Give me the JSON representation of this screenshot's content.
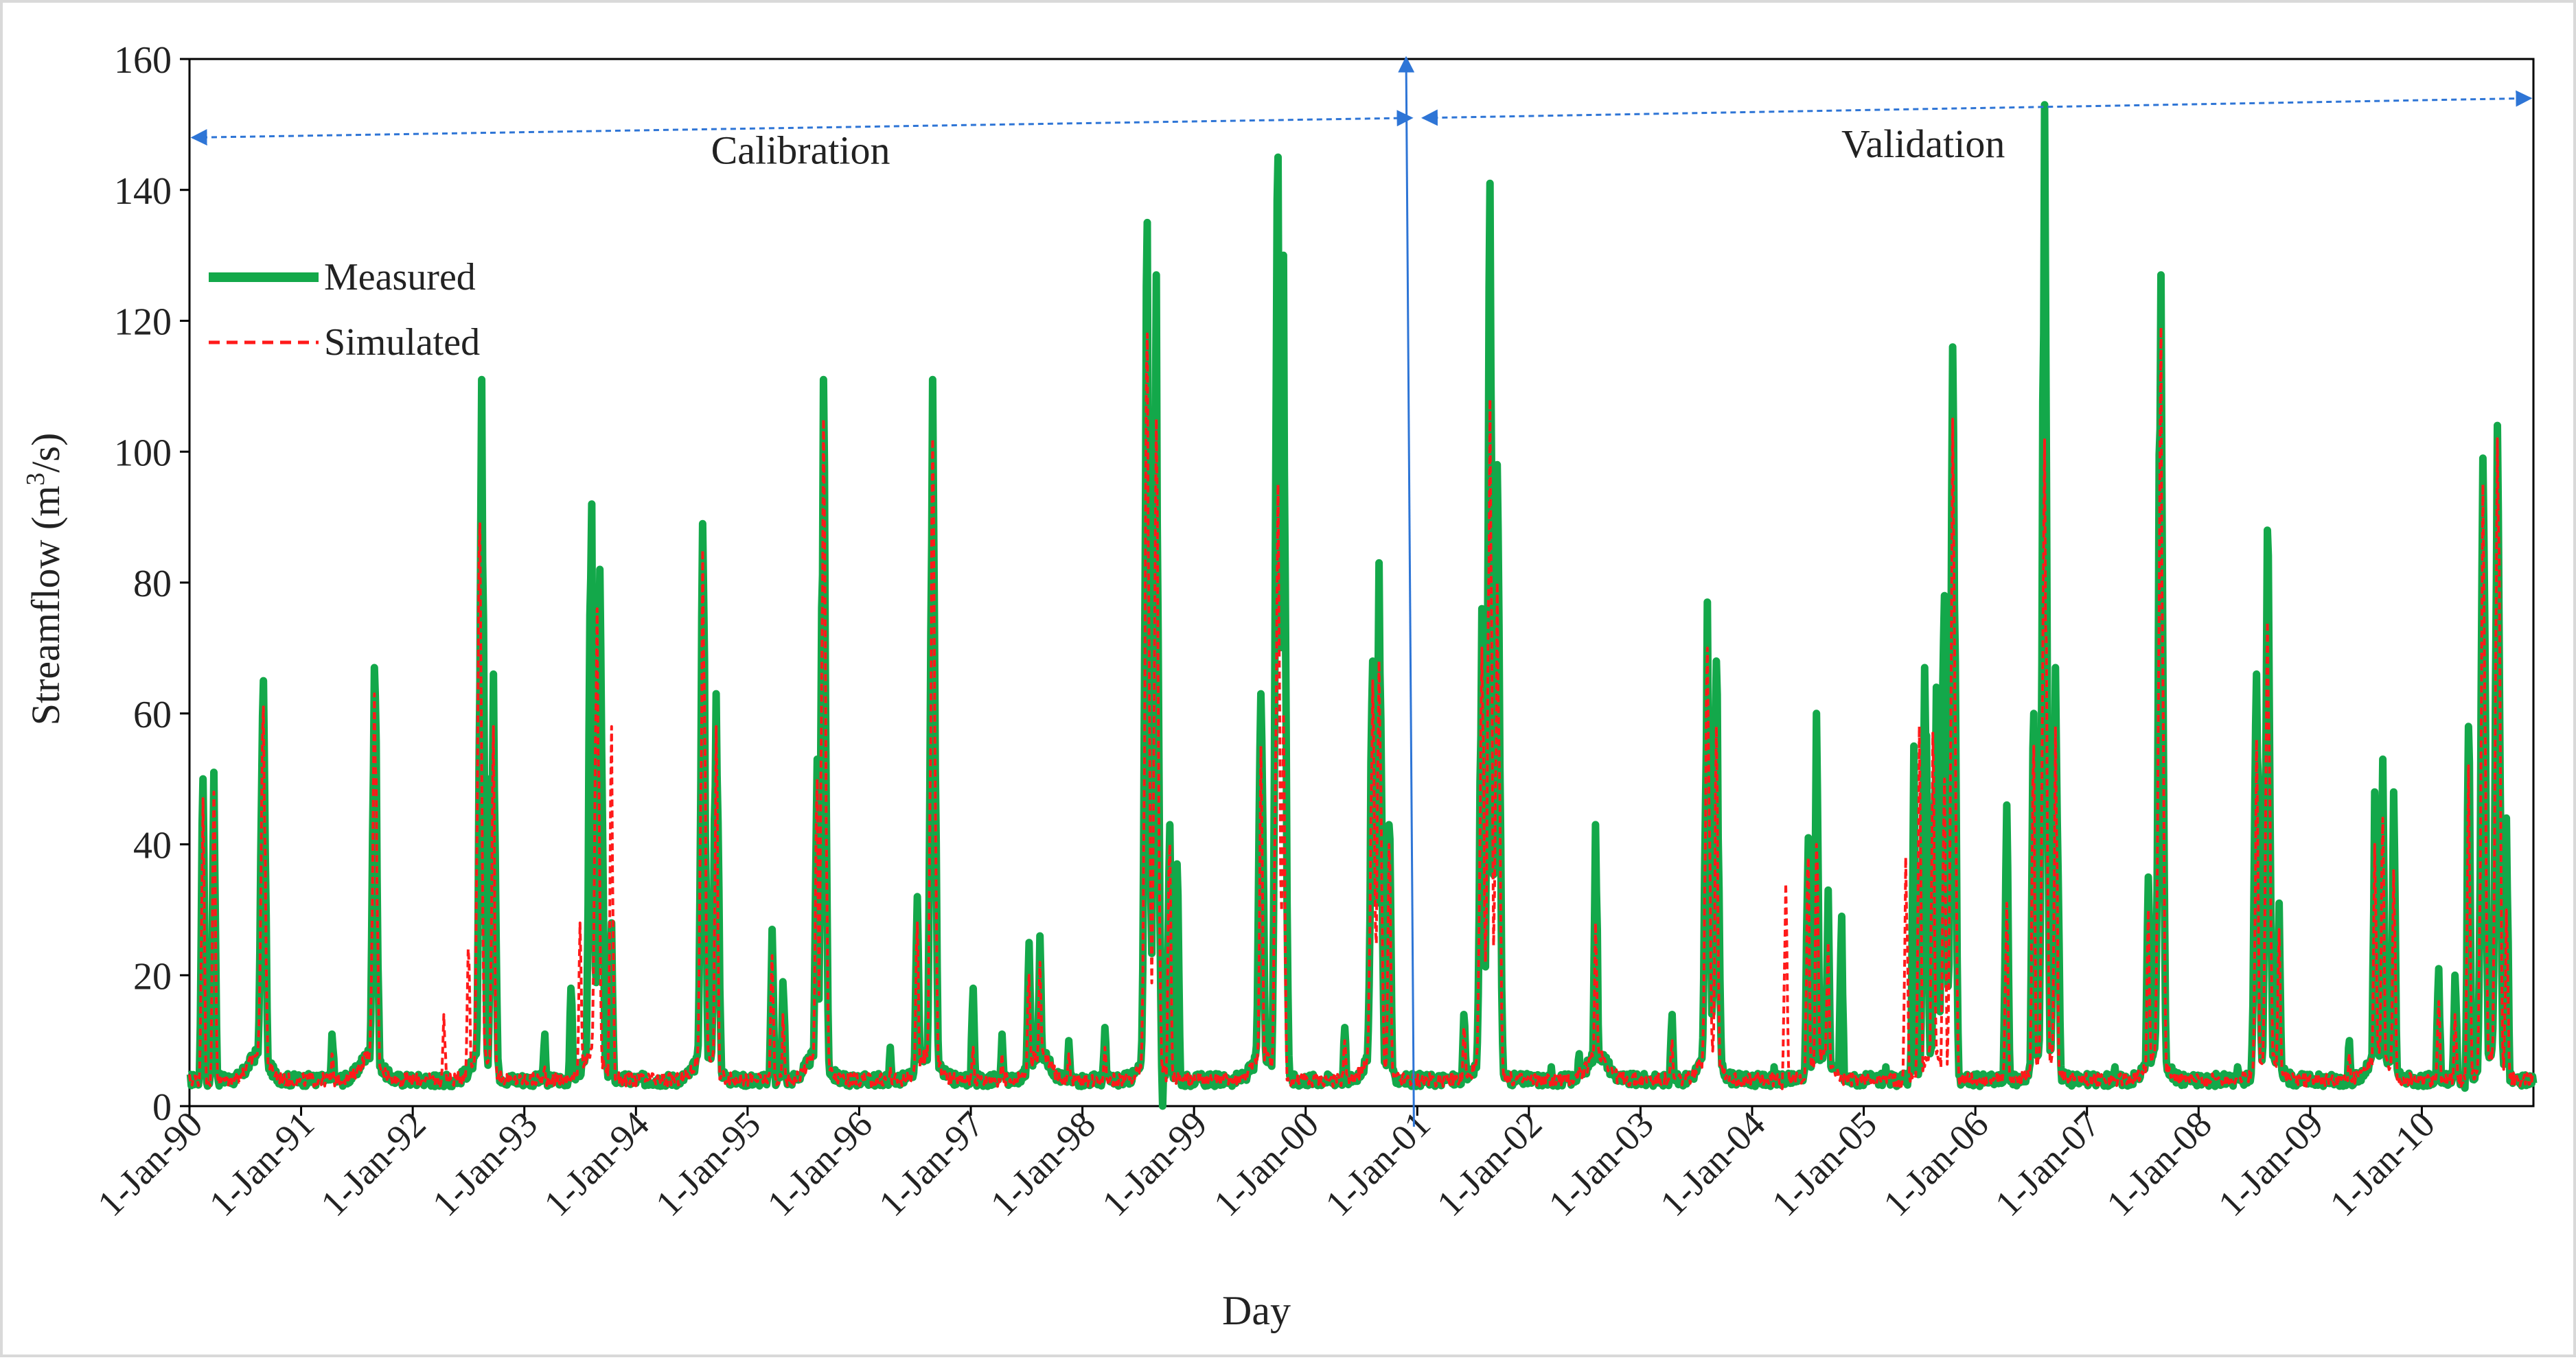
{
  "chart_data": {
    "type": "line",
    "title": "",
    "xlabel": "Day",
    "ylabel_main": "Streamflow (m",
    "ylabel_sup": "3",
    "ylabel_tail": "/s)",
    "ylim": [
      0,
      160
    ],
    "yticks": [
      0,
      20,
      40,
      60,
      80,
      100,
      120,
      140,
      160
    ],
    "x_range_years": [
      1990,
      2011
    ],
    "xtick_labels": [
      "1-Jan-90",
      "1-Jan-91",
      "1-Jan-92",
      "1-Jan-93",
      "1-Jan-94",
      "1-Jan-95",
      "1-Jan-96",
      "1-Jan-97",
      "1-Jan-98",
      "1-Jan-99",
      "1-Jan-00",
      "1-Jan-01",
      "1-Jan-02",
      "1-Jan-03",
      "1-Jan-04",
      "1-Jan-05",
      "1-Jan-06",
      "1-Jan-07",
      "1-Jan-08",
      "1-Jan-09",
      "1-Jan-10"
    ],
    "legend": {
      "placement": "top-left",
      "entries": [
        "Measured",
        "Simulated"
      ]
    },
    "annotations": {
      "calibration_label": "Calibration",
      "validation_label": "Validation",
      "calibration_range": [
        1990.0,
        2000.95
      ],
      "validation_range": [
        2001.05,
        2011.0
      ],
      "split_year": 2001.0
    },
    "series": [
      {
        "name": "Measured",
        "color": "#13a84a",
        "style": "solid",
        "peaks": [
          [
            1990.12,
            50
          ],
          [
            1990.22,
            51
          ],
          [
            1990.66,
            65
          ],
          [
            1991.28,
            11
          ],
          [
            1991.66,
            67
          ],
          [
            1992.2,
            3
          ],
          [
            1992.35,
            3
          ],
          [
            1992.62,
            111
          ],
          [
            1992.72,
            66
          ],
          [
            1993.18,
            11
          ],
          [
            1993.42,
            18
          ],
          [
            1993.6,
            92
          ],
          [
            1993.68,
            82
          ],
          [
            1993.78,
            28
          ],
          [
            1994.6,
            89
          ],
          [
            1994.72,
            63
          ],
          [
            1995.22,
            27
          ],
          [
            1995.32,
            19
          ],
          [
            1995.62,
            53
          ],
          [
            1995.68,
            111
          ],
          [
            1996.28,
            9
          ],
          [
            1996.52,
            32
          ],
          [
            1996.66,
            111
          ],
          [
            1997.02,
            18
          ],
          [
            1997.28,
            11
          ],
          [
            1997.52,
            25
          ],
          [
            1997.62,
            26
          ],
          [
            1997.88,
            10
          ],
          [
            1998.2,
            12
          ],
          [
            1998.58,
            135
          ],
          [
            1998.66,
            127
          ],
          [
            1998.78,
            43
          ],
          [
            1998.85,
            37
          ],
          [
            1999.6,
            63
          ],
          [
            1999.75,
            145
          ],
          [
            1999.8,
            130
          ],
          [
            2000.35,
            12
          ],
          [
            2000.6,
            68
          ],
          [
            2000.66,
            83
          ],
          [
            2000.75,
            43
          ],
          [
            2001.42,
            14
          ],
          [
            2001.58,
            76
          ],
          [
            2001.65,
            141
          ],
          [
            2001.72,
            98
          ],
          [
            2002.2,
            6
          ],
          [
            2002.45,
            8
          ],
          [
            2002.6,
            43
          ],
          [
            2003.28,
            14
          ],
          [
            2003.6,
            77
          ],
          [
            2003.68,
            68
          ],
          [
            2004.2,
            6
          ],
          [
            2004.5,
            41
          ],
          [
            2004.58,
            60
          ],
          [
            2004.68,
            33
          ],
          [
            2004.8,
            29
          ],
          [
            2005.2,
            6
          ],
          [
            2005.45,
            55
          ],
          [
            2005.55,
            67
          ],
          [
            2005.65,
            64
          ],
          [
            2005.72,
            78
          ],
          [
            2005.8,
            116
          ],
          [
            2006.28,
            46
          ],
          [
            2006.52,
            60
          ],
          [
            2006.62,
            153
          ],
          [
            2006.72,
            67
          ],
          [
            2007.25,
            6
          ],
          [
            2007.55,
            35
          ],
          [
            2007.66,
            127
          ],
          [
            2008.35,
            6
          ],
          [
            2008.52,
            66
          ],
          [
            2008.62,
            88
          ],
          [
            2008.72,
            31
          ],
          [
            2009.35,
            10
          ],
          [
            2009.58,
            48
          ],
          [
            2009.65,
            53
          ],
          [
            2009.75,
            48
          ],
          [
            2010.15,
            21
          ],
          [
            2010.3,
            20
          ],
          [
            2010.42,
            58
          ],
          [
            2010.55,
            99
          ],
          [
            2010.68,
            104
          ],
          [
            2010.76,
            44
          ]
        ],
        "dips": [
          [
            1998.72,
            0
          ]
        ]
      },
      {
        "name": "Simulated",
        "color": "#ff1a1a",
        "style": "dashed",
        "peaks": [
          [
            1990.12,
            47
          ],
          [
            1990.22,
            48
          ],
          [
            1990.66,
            61
          ],
          [
            1991.28,
            8
          ],
          [
            1991.66,
            63
          ],
          [
            1992.28,
            14
          ],
          [
            1992.5,
            24
          ],
          [
            1992.6,
            89
          ],
          [
            1992.72,
            58
          ],
          [
            1993.18,
            6
          ],
          [
            1993.5,
            28
          ],
          [
            1993.65,
            76
          ],
          [
            1993.78,
            58
          ],
          [
            1994.6,
            85
          ],
          [
            1994.72,
            58
          ],
          [
            1995.22,
            23
          ],
          [
            1995.32,
            14
          ],
          [
            1995.62,
            50
          ],
          [
            1995.68,
            105
          ],
          [
            1996.28,
            6
          ],
          [
            1996.52,
            28
          ],
          [
            1996.66,
            102
          ],
          [
            1997.02,
            9
          ],
          [
            1997.28,
            8
          ],
          [
            1997.52,
            20
          ],
          [
            1997.62,
            22
          ],
          [
            1997.88,
            8
          ],
          [
            1998.2,
            9
          ],
          [
            1998.58,
            118
          ],
          [
            1998.66,
            105
          ],
          [
            1998.78,
            40
          ],
          [
            1999.6,
            55
          ],
          [
            1999.75,
            95
          ],
          [
            1999.8,
            60
          ],
          [
            2000.35,
            10
          ],
          [
            2000.6,
            65
          ],
          [
            2000.66,
            68
          ],
          [
            2000.75,
            40
          ],
          [
            2001.42,
            12
          ],
          [
            2001.58,
            70
          ],
          [
            2001.65,
            108
          ],
          [
            2001.72,
            80
          ],
          [
            2002.2,
            4
          ],
          [
            2002.45,
            6
          ],
          [
            2002.6,
            28
          ],
          [
            2003.28,
            10
          ],
          [
            2003.6,
            70
          ],
          [
            2003.68,
            58
          ],
          [
            2004.3,
            34
          ],
          [
            2004.5,
            38
          ],
          [
            2004.58,
            40
          ],
          [
            2004.68,
            25
          ],
          [
            2005.38,
            38
          ],
          [
            2005.5,
            58
          ],
          [
            2005.62,
            57
          ],
          [
            2005.72,
            50
          ],
          [
            2005.8,
            105
          ],
          [
            2006.28,
            31
          ],
          [
            2006.52,
            55
          ],
          [
            2006.62,
            102
          ],
          [
            2006.72,
            58
          ],
          [
            2007.25,
            4
          ],
          [
            2007.55,
            30
          ],
          [
            2007.66,
            119
          ],
          [
            2008.35,
            4
          ],
          [
            2008.52,
            56
          ],
          [
            2008.62,
            74
          ],
          [
            2008.72,
            27
          ],
          [
            2009.35,
            8
          ],
          [
            2009.58,
            40
          ],
          [
            2009.65,
            44
          ],
          [
            2009.75,
            36
          ],
          [
            2010.15,
            16
          ],
          [
            2010.3,
            14
          ],
          [
            2010.42,
            52
          ],
          [
            2010.55,
            95
          ],
          [
            2010.68,
            102
          ],
          [
            2010.76,
            30
          ]
        ],
        "dips": []
      }
    ]
  }
}
